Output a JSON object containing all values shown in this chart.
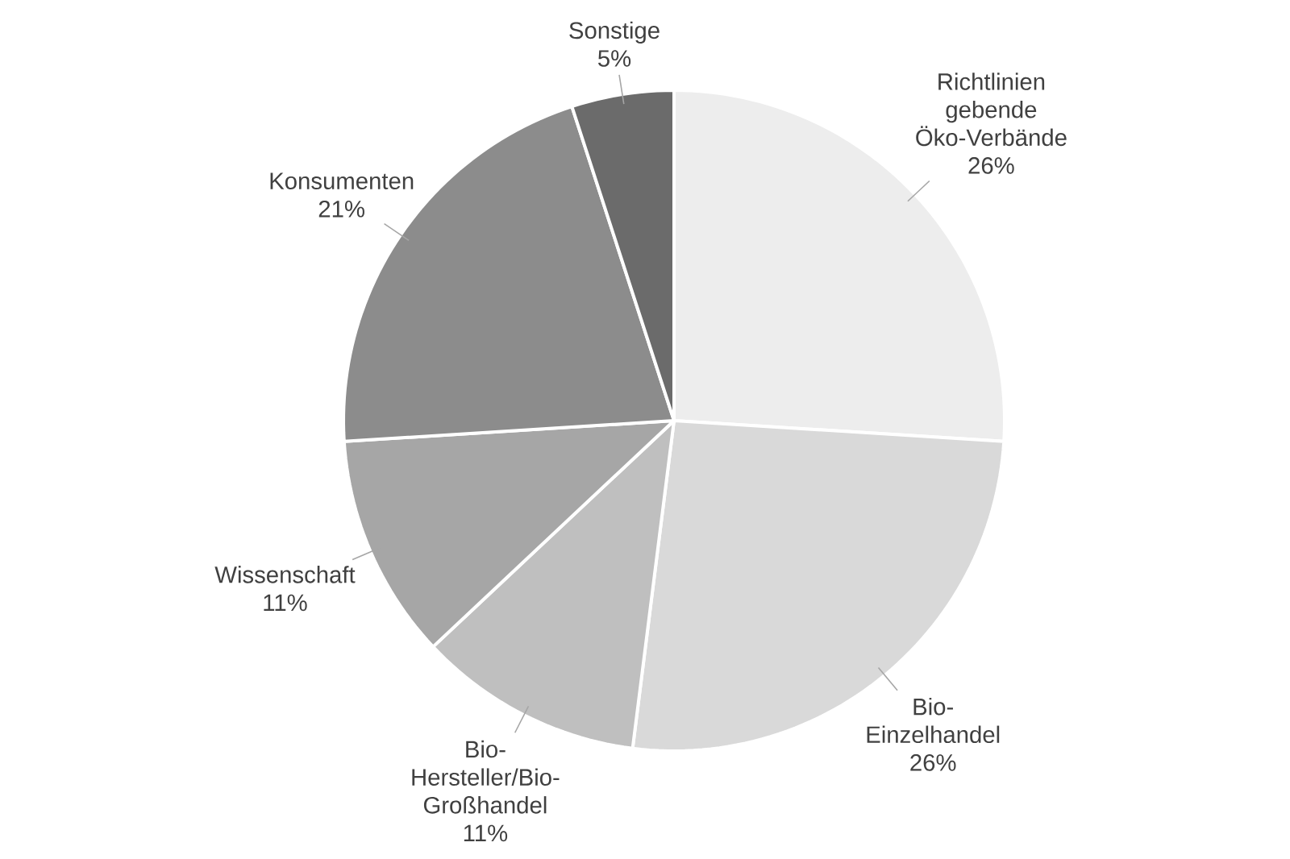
{
  "chart_data": {
    "type": "pie",
    "categories": [
      "Richtlinien gebende Öko-Verbände",
      "Bio-Einzelhandel",
      "Bio-Hersteller/Bio-Großhandel",
      "Wissenschaft",
      "Konsumenten",
      "Sonstige"
    ],
    "values": [
      26,
      26,
      11,
      11,
      21,
      5
    ],
    "value_labels": [
      "26%",
      "26%",
      "11%",
      "11%",
      "21%",
      "5%"
    ],
    "colors": [
      "#ededed",
      "#d9d9d9",
      "#bfbfbf",
      "#a6a6a6",
      "#8c8c8c",
      "#6b6b6b"
    ]
  }
}
